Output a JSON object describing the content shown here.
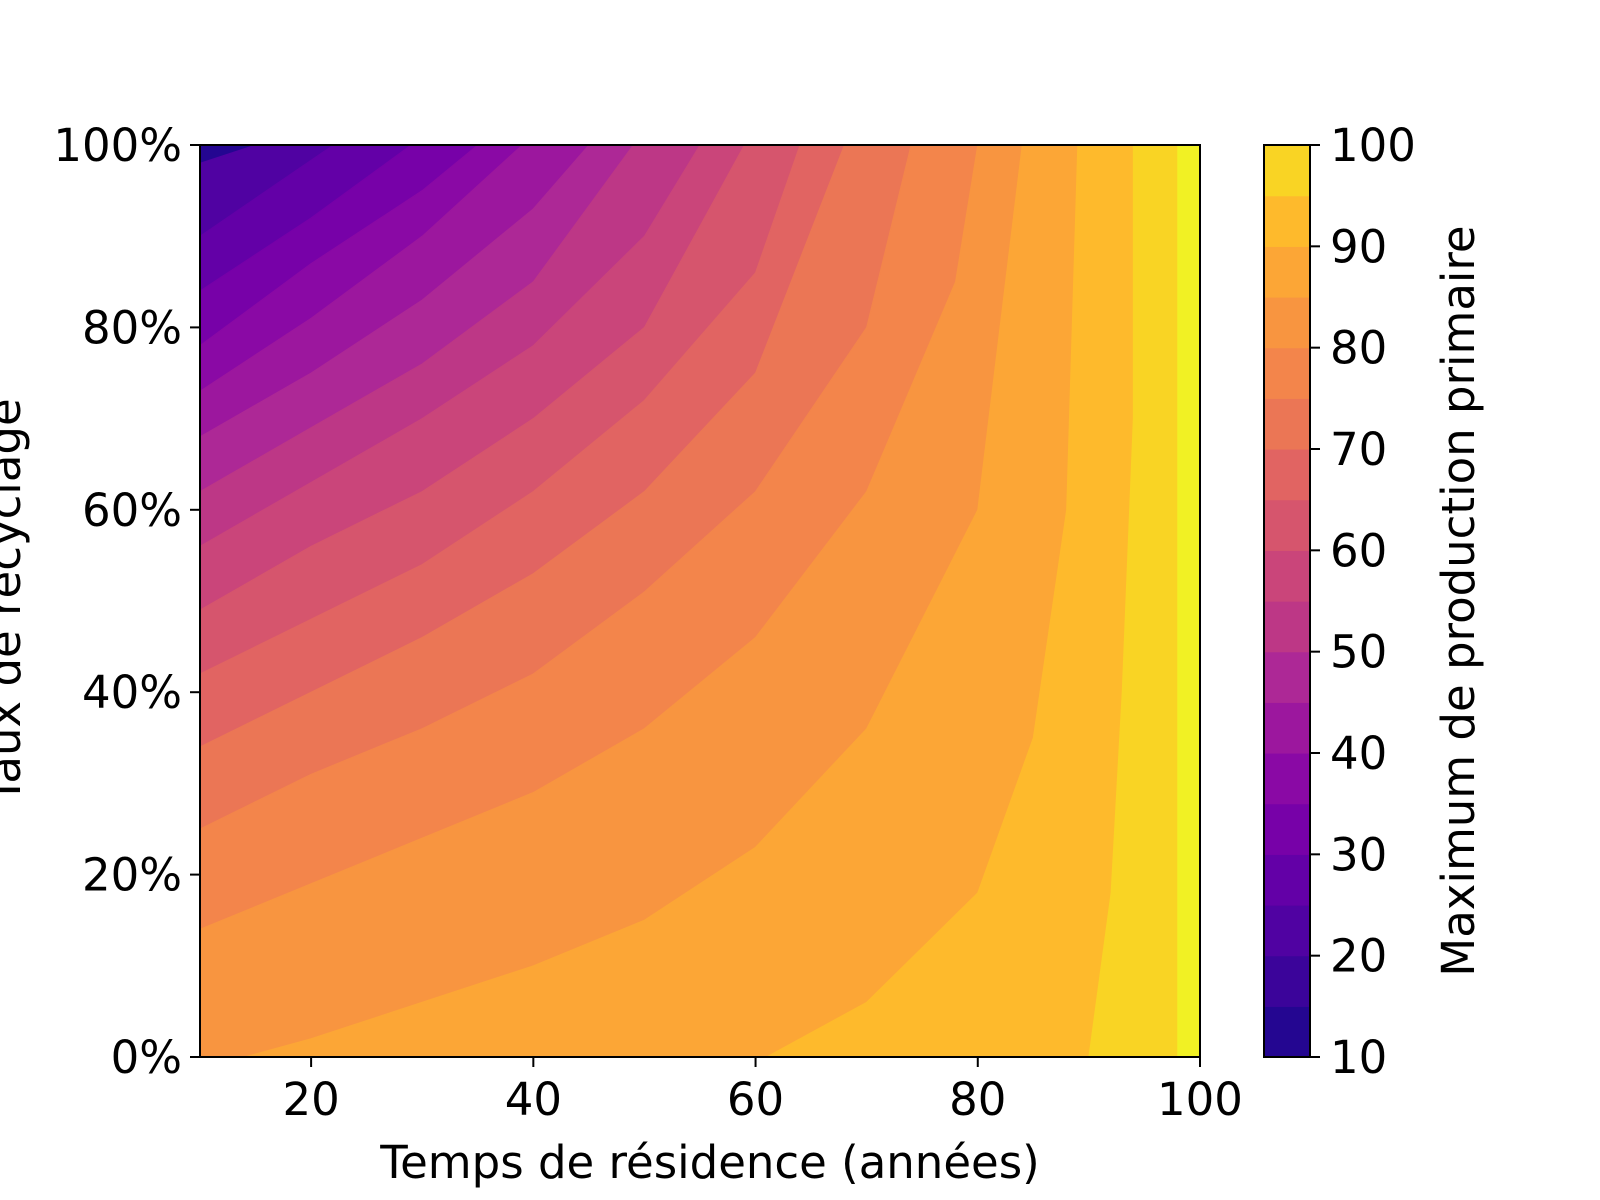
{
  "chart_data": {
    "type": "heatmap",
    "subtype": "filled-contour",
    "title": "",
    "xlabel": "Temps de résidence (années)",
    "ylabel": "Taux de recyclage",
    "colorbar_label": "Maximum de production primaire",
    "colormap": "plasma",
    "xlim": [
      10,
      100
    ],
    "ylim": [
      0,
      1
    ],
    "x_ticks": [
      20,
      40,
      60,
      80,
      100
    ],
    "x_tick_labels": [
      "20",
      "40",
      "60",
      "80",
      "100"
    ],
    "y_ticks": [
      0,
      0.2,
      0.4,
      0.6,
      0.8,
      1.0
    ],
    "y_tick_labels": [
      "0%",
      "20%",
      "40%",
      "60%",
      "80%",
      "100%"
    ],
    "colorbar_range": [
      10,
      100
    ],
    "colorbar_ticks": [
      10,
      20,
      30,
      40,
      50,
      60,
      70,
      80,
      90,
      100
    ],
    "colorbar_tick_labels": [
      "10",
      "20",
      "30",
      "40",
      "50",
      "60",
      "70",
      "80",
      "90",
      "100"
    ],
    "levels": [
      10,
      15,
      20,
      25,
      30,
      35,
      40,
      45,
      50,
      55,
      60,
      65,
      70,
      75,
      80,
      85,
      90,
      95,
      100
    ],
    "level_colors": [
      "#240691",
      "#3b049a",
      "#5002a2",
      "#6300a7",
      "#7701a8",
      "#8a09a5",
      "#9c179e",
      "#ad2896",
      "#bd3786",
      "#ca457a",
      "#d6556d",
      "#e16462",
      "#eb7655",
      "#f3854b",
      "#f89540",
      "#fca636",
      "#feba2c",
      "#f9d424",
      "#f1f124"
    ],
    "contour_levels_estimated": [
      {
        "level": 20,
        "points": [
          [
            10,
            0.98
          ],
          [
            15,
            1.0
          ]
        ]
      },
      {
        "level": 25,
        "points": [
          [
            10,
            0.9
          ],
          [
            22,
            1.0
          ]
        ]
      },
      {
        "level": 30,
        "points": [
          [
            10,
            0.84
          ],
          [
            20,
            0.92
          ],
          [
            29,
            1.0
          ]
        ]
      },
      {
        "level": 35,
        "points": [
          [
            10,
            0.78
          ],
          [
            20,
            0.87
          ],
          [
            30,
            0.95
          ],
          [
            35,
            1.0
          ]
        ]
      },
      {
        "level": 40,
        "points": [
          [
            10,
            0.73
          ],
          [
            20,
            0.81
          ],
          [
            30,
            0.9
          ],
          [
            39,
            1.0
          ]
        ]
      },
      {
        "level": 45,
        "points": [
          [
            10,
            0.68
          ],
          [
            20,
            0.75
          ],
          [
            30,
            0.83
          ],
          [
            40,
            0.93
          ],
          [
            45,
            1.0
          ]
        ]
      },
      {
        "level": 50,
        "points": [
          [
            10,
            0.62
          ],
          [
            20,
            0.69
          ],
          [
            30,
            0.76
          ],
          [
            40,
            0.85
          ],
          [
            49,
            1.0
          ]
        ]
      },
      {
        "level": 55,
        "points": [
          [
            10,
            0.56
          ],
          [
            20,
            0.63
          ],
          [
            30,
            0.7
          ],
          [
            40,
            0.78
          ],
          [
            50,
            0.9
          ],
          [
            55,
            1.0
          ]
        ]
      },
      {
        "level": 60,
        "points": [
          [
            10,
            0.49
          ],
          [
            20,
            0.56
          ],
          [
            30,
            0.62
          ],
          [
            40,
            0.7
          ],
          [
            50,
            0.8
          ],
          [
            59,
            1.0
          ]
        ]
      },
      {
        "level": 65,
        "points": [
          [
            10,
            0.42
          ],
          [
            20,
            0.48
          ],
          [
            30,
            0.54
          ],
          [
            40,
            0.62
          ],
          [
            50,
            0.72
          ],
          [
            60,
            0.86
          ],
          [
            64,
            1.0
          ]
        ]
      },
      {
        "level": 70,
        "points": [
          [
            10,
            0.34
          ],
          [
            20,
            0.4
          ],
          [
            30,
            0.46
          ],
          [
            40,
            0.53
          ],
          [
            50,
            0.62
          ],
          [
            60,
            0.75
          ],
          [
            68,
            1.0
          ]
        ]
      },
      {
        "level": 75,
        "points": [
          [
            10,
            0.25
          ],
          [
            20,
            0.31
          ],
          [
            30,
            0.36
          ],
          [
            40,
            0.42
          ],
          [
            50,
            0.51
          ],
          [
            60,
            0.62
          ],
          [
            70,
            0.8
          ],
          [
            74,
            1.0
          ]
        ]
      },
      {
        "level": 80,
        "points": [
          [
            10,
            0.14
          ],
          [
            20,
            0.19
          ],
          [
            30,
            0.24
          ],
          [
            40,
            0.29
          ],
          [
            50,
            0.36
          ],
          [
            60,
            0.46
          ],
          [
            70,
            0.62
          ],
          [
            78,
            0.85
          ],
          [
            80,
            1.0
          ]
        ]
      },
      {
        "level": 85,
        "points": [
          [
            14,
            0.0
          ],
          [
            20,
            0.02
          ],
          [
            30,
            0.06
          ],
          [
            40,
            0.1
          ],
          [
            50,
            0.15
          ],
          [
            60,
            0.23
          ],
          [
            70,
            0.36
          ],
          [
            80,
            0.6
          ],
          [
            84,
            1.0
          ]
        ]
      },
      {
        "level": 90,
        "points": [
          [
            61,
            0.0
          ],
          [
            70,
            0.06
          ],
          [
            80,
            0.18
          ],
          [
            85,
            0.35
          ],
          [
            88,
            0.6
          ],
          [
            89,
            1.0
          ]
        ]
      },
      {
        "level": 95,
        "points": [
          [
            90,
            0.0
          ],
          [
            92,
            0.18
          ],
          [
            93,
            0.4
          ],
          [
            94,
            0.7
          ],
          [
            94,
            1.0
          ]
        ]
      },
      {
        "level": 100,
        "points": [
          [
            98,
            0.0
          ],
          [
            98,
            1.0
          ]
        ]
      }
    ]
  }
}
